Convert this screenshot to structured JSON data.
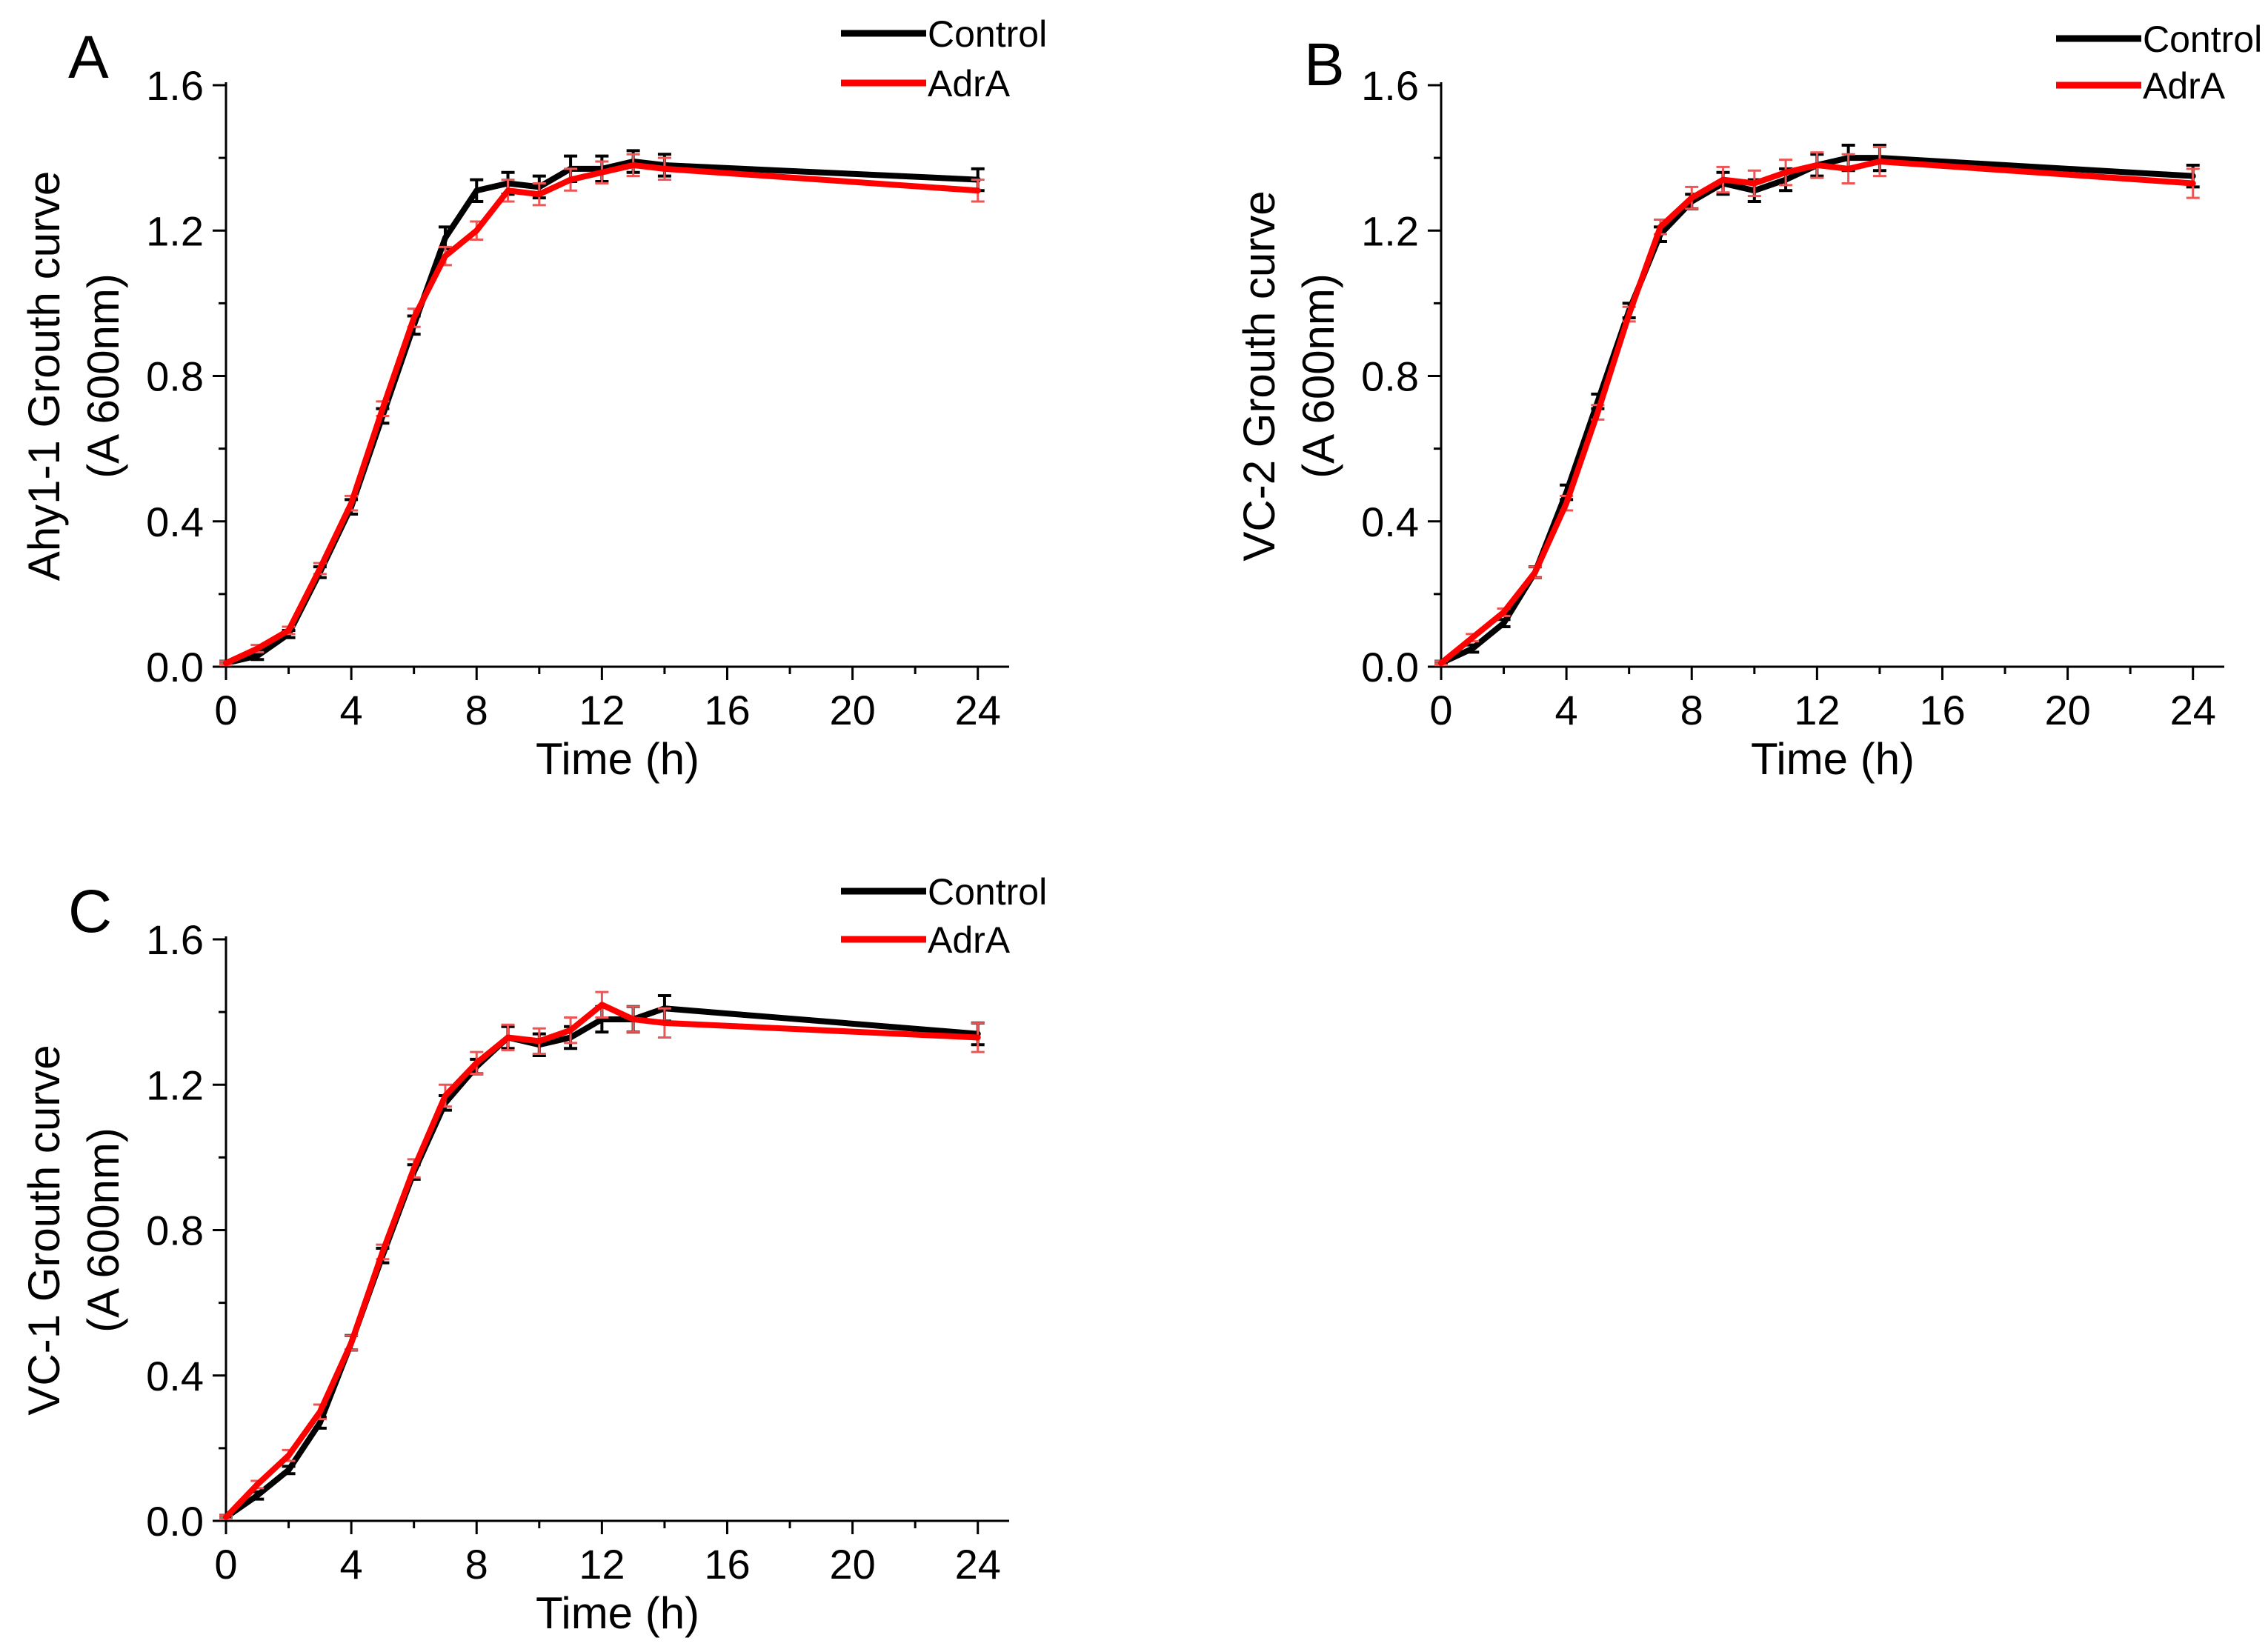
{
  "colors": {
    "control": "#000000",
    "adra": "#ff0000",
    "errorbar_adra": "#ee5555",
    "errorbar_control": "#000000"
  },
  "chart_data": [
    {
      "panel": "A",
      "type": "line",
      "xlabel": "Time (h)",
      "ylabel_line1": "Ahy1-1 Grouth curve",
      "ylabel_line2": "(A 600nm)",
      "xlim": [
        0,
        25
      ],
      "ylim": [
        0,
        1.6
      ],
      "xticks": [
        0,
        4,
        8,
        12,
        16,
        20,
        24
      ],
      "yticks": [
        0.0,
        0.4,
        0.8,
        1.2,
        1.6
      ],
      "xtick_labels": [
        "0",
        "4",
        "8",
        "12",
        "16",
        "20",
        "24"
      ],
      "ytick_labels": [
        "0.0",
        "0.4",
        "0.8",
        "1.2",
        "1.6"
      ],
      "legend": {
        "position": "top-right",
        "entries": [
          "Control",
          "AdrA"
        ]
      },
      "x": [
        0,
        1,
        2,
        3,
        4,
        5,
        6,
        7,
        8,
        9,
        10,
        11,
        12,
        13,
        14,
        24
      ],
      "series": [
        {
          "name": "Control",
          "values": [
            0.01,
            0.03,
            0.09,
            0.26,
            0.44,
            0.69,
            0.94,
            1.18,
            1.31,
            1.33,
            1.32,
            1.37,
            1.37,
            1.39,
            1.38,
            1.34
          ],
          "errors": [
            0.005,
            0.01,
            0.01,
            0.015,
            0.02,
            0.02,
            0.025,
            0.03,
            0.03,
            0.03,
            0.03,
            0.035,
            0.035,
            0.03,
            0.03,
            0.03
          ]
        },
        {
          "name": "AdrA",
          "values": [
            0.01,
            0.05,
            0.1,
            0.27,
            0.45,
            0.71,
            0.96,
            1.13,
            1.2,
            1.31,
            1.3,
            1.34,
            1.36,
            1.38,
            1.37,
            1.31
          ],
          "errors": [
            0.005,
            0.01,
            0.01,
            0.015,
            0.02,
            0.02,
            0.025,
            0.025,
            0.025,
            0.03,
            0.03,
            0.03,
            0.03,
            0.03,
            0.03,
            0.03
          ]
        }
      ]
    },
    {
      "panel": "B",
      "type": "line",
      "xlabel": "Time (h)",
      "ylabel_line1": "VC-2 Grouth curve",
      "ylabel_line2": "(A 600nm)",
      "xlim": [
        0,
        25
      ],
      "ylim": [
        0,
        1.6
      ],
      "xticks": [
        0,
        4,
        8,
        12,
        16,
        20,
        24
      ],
      "yticks": [
        0.0,
        0.4,
        0.8,
        1.2,
        1.6
      ],
      "xtick_labels": [
        "0",
        "4",
        "8",
        "12",
        "16",
        "20",
        "24"
      ],
      "ytick_labels": [
        "0.0",
        "0.4",
        "0.8",
        "1.2",
        "1.6"
      ],
      "legend": {
        "position": "top-right",
        "entries": [
          "Control",
          "AdrA"
        ]
      },
      "x": [
        0,
        1,
        2,
        3,
        4,
        5,
        6,
        7,
        8,
        9,
        10,
        11,
        12,
        13,
        14,
        24
      ],
      "series": [
        {
          "name": "Control",
          "values": [
            0.01,
            0.05,
            0.12,
            0.26,
            0.48,
            0.73,
            0.98,
            1.19,
            1.28,
            1.33,
            1.31,
            1.34,
            1.38,
            1.4,
            1.4,
            1.35
          ],
          "errors": [
            0.005,
            0.01,
            0.01,
            0.015,
            0.02,
            0.02,
            0.02,
            0.02,
            0.02,
            0.03,
            0.03,
            0.03,
            0.03,
            0.035,
            0.035,
            0.03
          ]
        },
        {
          "name": "AdrA",
          "values": [
            0.01,
            0.08,
            0.15,
            0.26,
            0.45,
            0.7,
            0.97,
            1.21,
            1.29,
            1.34,
            1.33,
            1.36,
            1.38,
            1.37,
            1.39,
            1.33
          ],
          "errors": [
            0.005,
            0.01,
            0.01,
            0.015,
            0.02,
            0.02,
            0.02,
            0.02,
            0.03,
            0.035,
            0.035,
            0.035,
            0.035,
            0.04,
            0.04,
            0.04
          ]
        }
      ]
    },
    {
      "panel": "C",
      "type": "line",
      "xlabel": "Time (h)",
      "ylabel_line1": "VC-1 Grouth curve",
      "ylabel_line2": "(A 600nm)",
      "xlim": [
        0,
        25
      ],
      "ylim": [
        0,
        1.6
      ],
      "xticks": [
        0,
        4,
        8,
        12,
        16,
        20,
        24
      ],
      "yticks": [
        0.0,
        0.4,
        0.8,
        1.2,
        1.6
      ],
      "xtick_labels": [
        "0",
        "4",
        "8",
        "12",
        "16",
        "20",
        "24"
      ],
      "ytick_labels": [
        "0.0",
        "0.4",
        "0.8",
        "1.2",
        "1.6"
      ],
      "legend": {
        "position": "top-right",
        "entries": [
          "Control",
          "AdrA"
        ]
      },
      "x": [
        0,
        1,
        2,
        3,
        4,
        5,
        6,
        7,
        8,
        9,
        10,
        11,
        12,
        13,
        14,
        24
      ],
      "series": [
        {
          "name": "Control",
          "values": [
            0.01,
            0.07,
            0.14,
            0.27,
            0.49,
            0.73,
            0.96,
            1.15,
            1.25,
            1.33,
            1.31,
            1.33,
            1.38,
            1.38,
            1.41,
            1.34
          ],
          "errors": [
            0.005,
            0.01,
            0.01,
            0.015,
            0.02,
            0.02,
            0.02,
            0.02,
            0.02,
            0.03,
            0.03,
            0.03,
            0.035,
            0.035,
            0.035,
            0.03
          ]
        },
        {
          "name": "AdrA",
          "values": [
            0.01,
            0.1,
            0.18,
            0.3,
            0.49,
            0.74,
            0.97,
            1.17,
            1.26,
            1.33,
            1.32,
            1.35,
            1.42,
            1.38,
            1.37,
            1.33
          ],
          "errors": [
            0.005,
            0.01,
            0.015,
            0.02,
            0.02,
            0.02,
            0.025,
            0.03,
            0.03,
            0.035,
            0.035,
            0.035,
            0.035,
            0.035,
            0.04,
            0.04
          ]
        }
      ]
    }
  ]
}
